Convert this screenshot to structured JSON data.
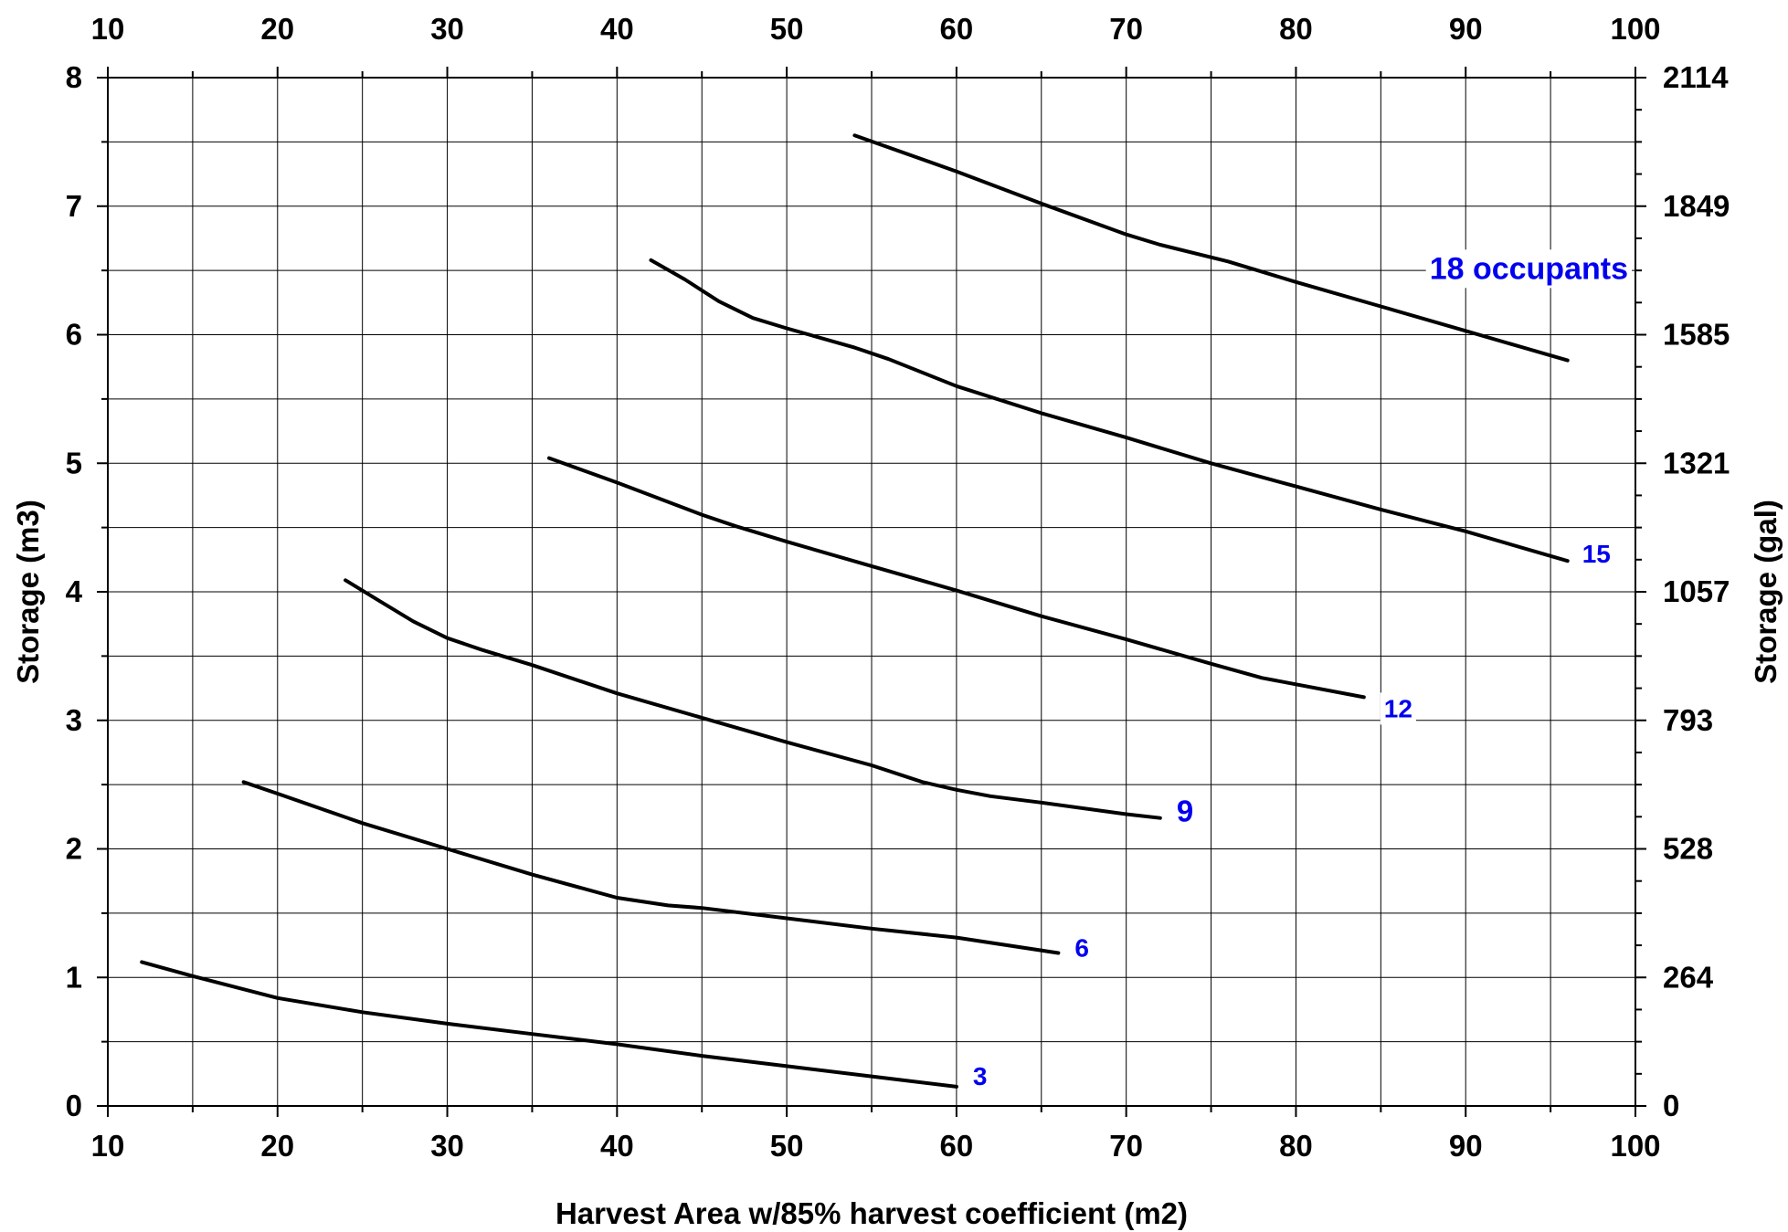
{
  "chart_data": {
    "type": "line",
    "xlabel": "Harvest Area w/85% harvest coefficient (m2)",
    "ylabel": "Storage (m3)",
    "y2label": "Storage (gal)",
    "xlim": [
      10,
      100
    ],
    "ylim": [
      0,
      8
    ],
    "x_ticks": [
      "10",
      "20",
      "30",
      "40",
      "50",
      "60",
      "70",
      "80",
      "90",
      "100"
    ],
    "y_ticks": [
      "0",
      "1",
      "2",
      "3",
      "4",
      "5",
      "6",
      "7",
      "8"
    ],
    "y2_ticks": [
      "0",
      "264",
      "528",
      "793",
      "1057",
      "1321",
      "1585",
      "1849",
      "2114"
    ],
    "grid": true,
    "line_color": "#000000",
    "label_color": "#0000ee",
    "series": [
      {
        "name": "3",
        "x": [
          12,
          15,
          20,
          25,
          30,
          35,
          40,
          45,
          50,
          55,
          60
        ],
        "y": [
          1.12,
          1.01,
          0.84,
          0.73,
          0.64,
          0.56,
          0.48,
          0.39,
          0.31,
          0.23,
          0.15
        ]
      },
      {
        "name": "6",
        "x": [
          18,
          20,
          25,
          30,
          35,
          40,
          43,
          45,
          50,
          55,
          60,
          66
        ],
        "y": [
          2.52,
          2.43,
          2.2,
          2.0,
          1.8,
          1.62,
          1.56,
          1.54,
          1.46,
          1.38,
          1.31,
          1.19
        ]
      },
      {
        "name": "9",
        "x": [
          24,
          26,
          28,
          30,
          32,
          35,
          40,
          45,
          50,
          55,
          58,
          60,
          62,
          65,
          70,
          72
        ],
        "y": [
          4.09,
          3.93,
          3.77,
          3.64,
          3.55,
          3.43,
          3.21,
          3.02,
          2.83,
          2.65,
          2.52,
          2.46,
          2.41,
          2.36,
          2.27,
          2.24
        ]
      },
      {
        "name": "12",
        "x": [
          36,
          40,
          45,
          47,
          50,
          55,
          60,
          65,
          70,
          75,
          78,
          80,
          84
        ],
        "y": [
          5.04,
          4.85,
          4.6,
          4.51,
          4.39,
          4.2,
          4.01,
          3.81,
          3.63,
          3.44,
          3.33,
          3.28,
          3.18
        ]
      },
      {
        "name": "15",
        "x": [
          42,
          44,
          46,
          48,
          50,
          54,
          56,
          60,
          65,
          70,
          75,
          80,
          85,
          90,
          96
        ],
        "y": [
          6.58,
          6.43,
          6.26,
          6.13,
          6.05,
          5.9,
          5.81,
          5.6,
          5.39,
          5.2,
          5.0,
          4.82,
          4.64,
          4.47,
          4.24
        ]
      },
      {
        "name": "18 occupants",
        "x": [
          54,
          60,
          65,
          70,
          72,
          76,
          80,
          85,
          90,
          96
        ],
        "y": [
          7.55,
          7.27,
          7.02,
          6.78,
          6.7,
          6.57,
          6.41,
          6.22,
          6.03,
          5.8
        ]
      }
    ]
  }
}
